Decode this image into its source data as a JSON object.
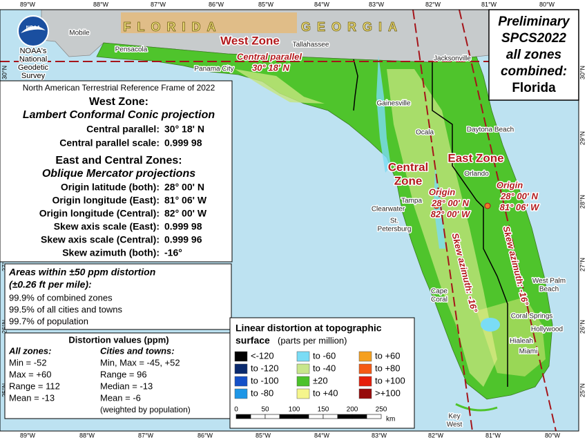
{
  "logo": {
    "emblem": "NOAA",
    "lines": [
      "NOAA's",
      "National",
      "Geodetic",
      "Survey"
    ]
  },
  "title_box": {
    "lines": [
      "Preliminary",
      "SPCS2022",
      "all zones",
      "combined:",
      "Florida"
    ]
  },
  "graticule": {
    "top": [
      "89°W",
      "88°W",
      "87°W",
      "86°W",
      "85°W",
      "84°W",
      "83°W",
      "82°W",
      "81°W",
      "80°W"
    ],
    "bottom": [
      "89°W",
      "88°W",
      "87°W",
      "86°W",
      "85°W",
      "84°W",
      "83°W",
      "82°W",
      "81°W",
      "80°W"
    ],
    "left": [
      "30°N",
      "29°N",
      "28°N",
      "27°N",
      "26°N",
      "25°N"
    ],
    "right": [
      "30°N",
      "29°N",
      "28°N",
      "27°N",
      "26°N",
      "25°N"
    ]
  },
  "states": [
    "FLORIDA",
    "GEORGIA"
  ],
  "cities": [
    {
      "lines": [
        "Mobile"
      ]
    },
    {
      "lines": [
        "Pensacola"
      ]
    },
    {
      "lines": [
        "Panama City"
      ]
    },
    {
      "lines": [
        "Tallahassee"
      ]
    },
    {
      "lines": [
        "Jacksonville"
      ]
    },
    {
      "lines": [
        "Gainesville"
      ]
    },
    {
      "lines": [
        "Ocala"
      ]
    },
    {
      "lines": [
        "Daytona Beach"
      ]
    },
    {
      "lines": [
        "Orlando"
      ]
    },
    {
      "lines": [
        "Tampa"
      ]
    },
    {
      "lines": [
        "Clearwater"
      ]
    },
    {
      "lines": [
        "St.",
        "Petersburg"
      ]
    },
    {
      "lines": [
        "Cape",
        "Coral"
      ]
    },
    {
      "lines": [
        "West Palm",
        "Beach"
      ]
    },
    {
      "lines": [
        "Coral Springs"
      ]
    },
    {
      "lines": [
        "Hollywood"
      ]
    },
    {
      "lines": [
        "Hialeah"
      ]
    },
    {
      "lines": [
        "Miami"
      ]
    },
    {
      "lines": [
        "Key",
        "West"
      ]
    }
  ],
  "zones": {
    "west": {
      "name": "West Zone",
      "parallel_label": "Central parallel",
      "parallel_value": "30° 18' N"
    },
    "central": {
      "name_lines": [
        "Central",
        "Zone"
      ],
      "origin": {
        "label": "Origin",
        "lat": "28° 00' N",
        "lon": "82° 00' W"
      },
      "skew": "Skew azimuth: -16°"
    },
    "east": {
      "name": "East Zone",
      "origin": {
        "label": "Origin",
        "lat": "28° 00' N",
        "lon": "81° 06' W"
      },
      "skew": "Skew azimuth: -16°"
    }
  },
  "info": {
    "frame": "North American Terrestrial Reference Frame of 2022",
    "west": {
      "heading": "West Zone:",
      "projection": "Lambert Conformal Conic projection",
      "rows": [
        [
          "Central parallel:",
          "30° 18' N"
        ],
        [
          "Central parallel scale:",
          "0.999 98"
        ]
      ]
    },
    "east_central": {
      "heading": "East and Central Zones:",
      "projection": "Oblique Mercator projections",
      "rows": [
        [
          "Origin latitude (both):",
          "28° 00' N"
        ],
        [
          "Origin longitude (East):",
          "81° 06' W"
        ],
        [
          "Origin longitude (Central):",
          "82° 00' W"
        ],
        [
          "Skew axis scale (East):",
          "0.999 98"
        ],
        [
          "Skew axis scale (Central):",
          "0.999 96"
        ],
        [
          "Skew azimuth (both):",
          "-16°"
        ]
      ]
    }
  },
  "areas": {
    "title_lines": [
      "Areas within ±50 ppm distortion",
      "(±0.26 ft per mile):"
    ],
    "lines": [
      "99.9% of combined zones",
      "99.5% of all cities and towns",
      "99.7% of population"
    ]
  },
  "distortion": {
    "title": "Distortion values (ppm)",
    "all_zones": {
      "heading": "All zones:",
      "lines": [
        "Min = -52",
        "Max = +60",
        "Range = 112",
        "Mean = -13"
      ]
    },
    "cities": {
      "heading": "Cities and towns:",
      "lines": [
        "Min, Max = -45, +52",
        "Range = 96",
        "Median = -13",
        "Mean = -6",
        "(weighted by population)"
      ]
    }
  },
  "legend": {
    "title": "Linear distortion at topographic",
    "title2": "surface",
    "units": "(parts per million)",
    "items": [
      {
        "label": "<-120",
        "color": "#000000"
      },
      {
        "label": "to -120",
        "color": "#0a2a6e"
      },
      {
        "label": "to -100",
        "color": "#1450c8"
      },
      {
        "label": "to -80",
        "color": "#1e96e6"
      },
      {
        "label": "to -60",
        "color": "#7adcf5"
      },
      {
        "label": "to -40",
        "color": "#c8e68c"
      },
      {
        "label": "±20",
        "color": "#4cc22a"
      },
      {
        "label": "to +40",
        "color": "#f5f58c"
      },
      {
        "label": "to +60",
        "color": "#f5a01e"
      },
      {
        "label": "to +80",
        "color": "#f55a14"
      },
      {
        "label": "to +100",
        "color": "#e61e0a"
      },
      {
        "label": ">+100",
        "color": "#960a0a"
      }
    ],
    "scale": [
      0,
      50,
      100,
      150,
      200,
      250
    ],
    "scale_unit": "km"
  }
}
